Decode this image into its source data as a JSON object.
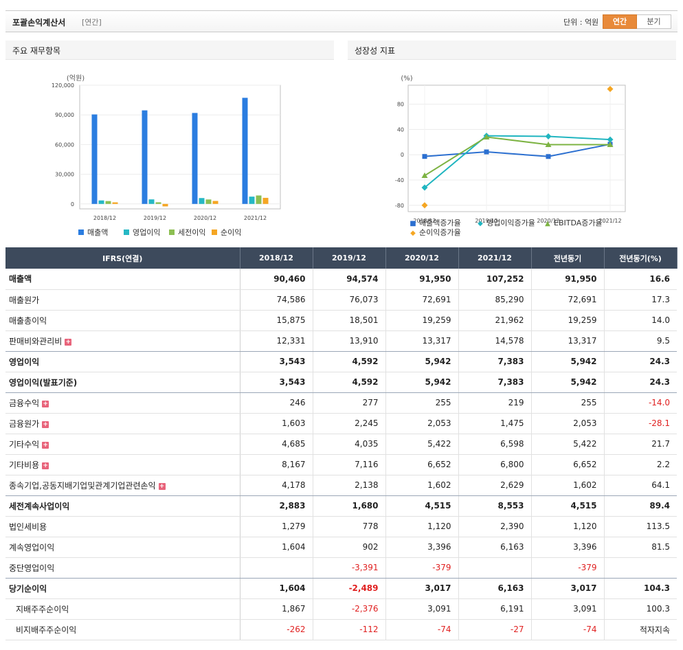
{
  "header": {
    "title": "포괄손익계산서",
    "subtitle": "[연간]",
    "unit_label": "단위 : 억원",
    "tab_annual": "연간",
    "tab_quarter": "분기"
  },
  "left_panel": {
    "title": "주요 재무항목"
  },
  "right_panel": {
    "title": "성장성 지표"
  },
  "chart_data": [
    {
      "type": "bar",
      "ylabel": "(억원)",
      "categories": [
        "2018/12",
        "2019/12",
        "2020/12",
        "2021/12"
      ],
      "ylim": [
        -5000,
        120000
      ],
      "yticks": [
        "120,000",
        "90,000",
        "60,000",
        "30,000",
        "0"
      ],
      "yticks_values": [
        120000,
        90000,
        60000,
        30000,
        0
      ],
      "legend": "bottom",
      "series": [
        {
          "name": "매출액",
          "color": "#2b7de0",
          "values": [
            90460,
            94574,
            91950,
            107252
          ]
        },
        {
          "name": "영업이익",
          "color": "#26b8c4",
          "values": [
            3543,
            4592,
            5942,
            7383
          ]
        },
        {
          "name": "세전이익",
          "color": "#8dbf52",
          "values": [
            2883,
            1680,
            4515,
            8553
          ]
        },
        {
          "name": "순이익",
          "color": "#f5a623",
          "values": [
            1604,
            -2489,
            3017,
            6163
          ]
        }
      ]
    },
    {
      "type": "line",
      "ylabel": "(%)",
      "categories": [
        "2018/12",
        "2019/12",
        "2020/12",
        "2021/12"
      ],
      "ylim": [
        -90,
        110
      ],
      "yticks": [
        "80",
        "40",
        "0",
        "-40",
        "-80"
      ],
      "yticks_values": [
        80,
        40,
        0,
        -40,
        -80
      ],
      "legend": "bottom",
      "series": [
        {
          "name": "매출액증가율",
          "color": "#2b6fd0",
          "marker": "■",
          "values": [
            -2.7,
            4.5,
            -2.8,
            16.6
          ]
        },
        {
          "name": "영업이익증가율",
          "color": "#20b5c0",
          "marker": "◆",
          "values": [
            -52,
            30,
            29,
            24
          ]
        },
        {
          "name": "EBITDA증가율",
          "color": "#7db343",
          "marker": "▲",
          "values": [
            -33,
            28,
            16,
            16
          ]
        },
        {
          "name": "순이익증가율",
          "color": "#f5a623",
          "marker": "◆",
          "values": [
            -80,
            null,
            null,
            104
          ]
        }
      ]
    }
  ],
  "table": {
    "headers": [
      "IFRS(연결)",
      "2018/12",
      "2019/12",
      "2020/12",
      "2021/12",
      "전년동기",
      "전년동기(%)"
    ],
    "rows": [
      {
        "label": "매출액",
        "bold": true,
        "values": [
          "90,460",
          "94,574",
          "91,950",
          "107,252",
          "91,950",
          "16.6"
        ]
      },
      {
        "label": "매출원가",
        "values": [
          "74,586",
          "76,073",
          "72,691",
          "85,290",
          "72,691",
          "17.3"
        ]
      },
      {
        "label": "매출총이익",
        "values": [
          "15,875",
          "18,501",
          "19,259",
          "21,962",
          "19,259",
          "14.0"
        ]
      },
      {
        "label": "판매비와관리비",
        "plus": true,
        "sep": true,
        "values": [
          "12,331",
          "13,910",
          "13,317",
          "14,578",
          "13,317",
          "9.5"
        ]
      },
      {
        "label": "영업이익",
        "bold": true,
        "values": [
          "3,543",
          "4,592",
          "5,942",
          "7,383",
          "5,942",
          "24.3"
        ]
      },
      {
        "label": "영업이익(발표기준)",
        "bold": true,
        "sep": true,
        "values": [
          "3,543",
          "4,592",
          "5,942",
          "7,383",
          "5,942",
          "24.3"
        ]
      },
      {
        "label": "금융수익",
        "plus": true,
        "values": [
          "246",
          "277",
          "255",
          "219",
          "255",
          "-14.0"
        ]
      },
      {
        "label": "금융원가",
        "plus": true,
        "values": [
          "1,603",
          "2,245",
          "2,053",
          "1,475",
          "2,053",
          "-28.1"
        ]
      },
      {
        "label": "기타수익",
        "plus": true,
        "values": [
          "4,685",
          "4,035",
          "5,422",
          "6,598",
          "5,422",
          "21.7"
        ]
      },
      {
        "label": "기타비용",
        "plus": true,
        "values": [
          "8,167",
          "7,116",
          "6,652",
          "6,800",
          "6,652",
          "2.2"
        ]
      },
      {
        "label": "종속기업,공동지배기업및관계기업관련손익",
        "plus": true,
        "sep": true,
        "values": [
          "4,178",
          "2,138",
          "1,602",
          "2,629",
          "1,602",
          "64.1"
        ]
      },
      {
        "label": "세전계속사업이익",
        "bold": true,
        "values": [
          "2,883",
          "1,680",
          "4,515",
          "8,553",
          "4,515",
          "89.4"
        ]
      },
      {
        "label": "법인세비용",
        "values": [
          "1,279",
          "778",
          "1,120",
          "2,390",
          "1,120",
          "113.5"
        ]
      },
      {
        "label": "계속영업이익",
        "values": [
          "1,604",
          "902",
          "3,396",
          "6,163",
          "3,396",
          "81.5"
        ]
      },
      {
        "label": "중단영업이익",
        "sep": true,
        "values": [
          "",
          "-3,391",
          "-379",
          "",
          "-379",
          ""
        ]
      },
      {
        "label": "당기순이익",
        "bold": true,
        "values": [
          "1,604",
          "-2,489",
          "3,017",
          "6,163",
          "3,017",
          "104.3"
        ]
      },
      {
        "label": "지배주주순이익",
        "sub": true,
        "values": [
          "1,867",
          "-2,376",
          "3,091",
          "6,191",
          "3,091",
          "100.3"
        ]
      },
      {
        "label": "비지배주주순이익",
        "sub": true,
        "values": [
          "-262",
          "-112",
          "-74",
          "-27",
          "-74",
          "적자지속"
        ]
      }
    ]
  }
}
